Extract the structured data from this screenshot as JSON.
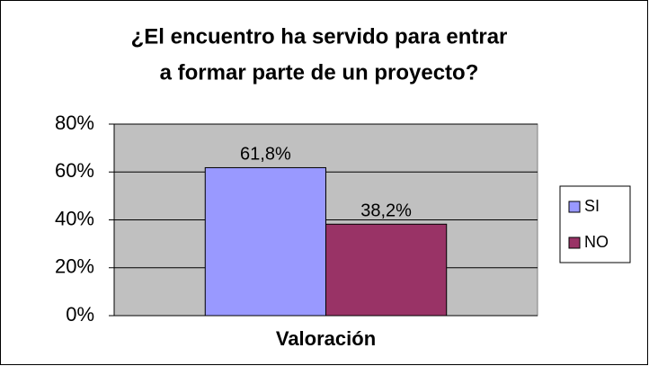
{
  "chart_data": {
    "type": "bar",
    "title": [
      "¿El encuentro ha servido para entrar",
      "a formar parte de un proyecto?"
    ],
    "categories": [
      "Valoración"
    ],
    "series": [
      {
        "name": "SI",
        "color": "#9999ff",
        "values": [
          61.8
        ],
        "value_labels": [
          "61,8%"
        ]
      },
      {
        "name": "NO",
        "color": "#993366",
        "values": [
          38.2
        ],
        "value_labels": [
          "38,2%"
        ]
      }
    ],
    "ylim": [
      0,
      80
    ],
    "yticks": [
      {
        "value": 0,
        "label": "0%"
      },
      {
        "value": 20,
        "label": "20%"
      },
      {
        "value": 40,
        "label": "40%"
      },
      {
        "value": 60,
        "label": "60%"
      },
      {
        "value": 80,
        "label": "80%"
      }
    ],
    "grid": true,
    "legend": "right",
    "plot_background": "#c0c0c0"
  }
}
